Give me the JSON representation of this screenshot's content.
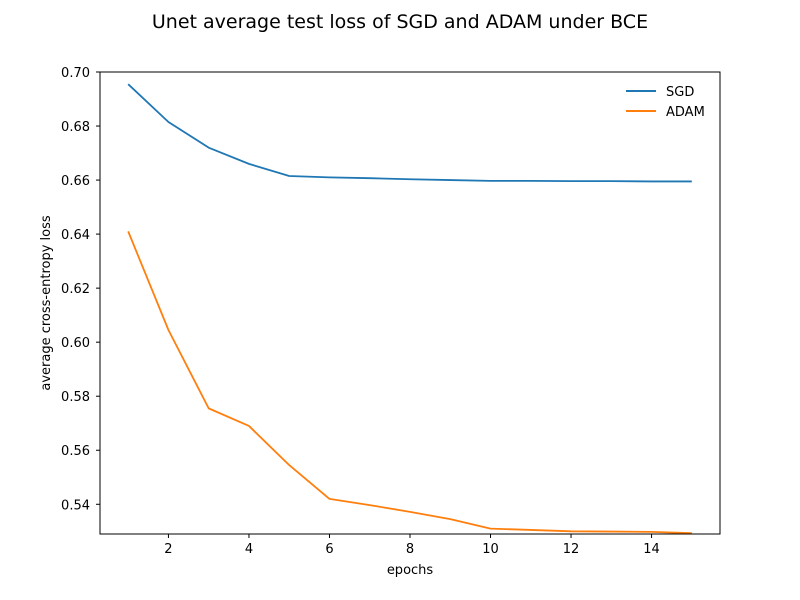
{
  "chart_data": {
    "type": "line",
    "title": "Unet average test loss of SGD and ADAM under BCE",
    "xlabel": "epochs",
    "ylabel": "average cross-entropy loss",
    "xlim": [
      0.3,
      15.7
    ],
    "ylim": [
      0.529,
      0.7
    ],
    "x_ticks": [
      2,
      4,
      6,
      8,
      10,
      12,
      14
    ],
    "y_ticks": [
      0.54,
      0.56,
      0.58,
      0.6,
      0.62,
      0.64,
      0.66,
      0.68,
      0.7
    ],
    "x_tick_labels": [
      "2",
      "4",
      "6",
      "8",
      "10",
      "12",
      "14"
    ],
    "y_tick_labels": [
      "0.54",
      "0.56",
      "0.58",
      "0.60",
      "0.62",
      "0.64",
      "0.66",
      "0.68",
      "0.70"
    ],
    "grid": false,
    "legend_position": "top-right",
    "x": [
      1,
      2,
      3,
      4,
      5,
      6,
      7,
      8,
      9,
      10,
      11,
      12,
      13,
      14,
      15
    ],
    "series": [
      {
        "name": "SGD",
        "color": "#1f77b4",
        "values": [
          0.6955,
          0.6815,
          0.672,
          0.666,
          0.6615,
          0.661,
          0.6607,
          0.6603,
          0.66,
          0.6597,
          0.6597,
          0.6596,
          0.6596,
          0.6595,
          0.6595
        ]
      },
      {
        "name": "ADAM",
        "color": "#ff7f0e",
        "values": [
          0.641,
          0.6045,
          0.5755,
          0.569,
          0.5545,
          0.542,
          0.5397,
          0.5372,
          0.5345,
          0.531,
          0.5305,
          0.53,
          0.5299,
          0.5298,
          0.5293
        ]
      }
    ]
  }
}
